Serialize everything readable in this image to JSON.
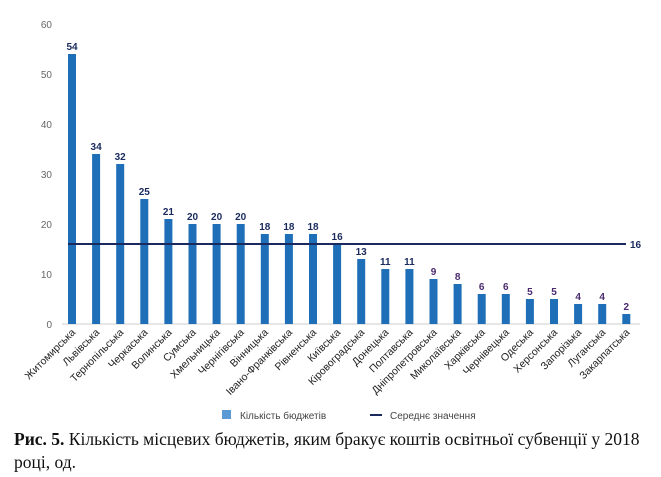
{
  "chart_data": {
    "type": "bar",
    "categories": [
      "Житомирська",
      "Львівська",
      "Тернопільська",
      "Черкаська",
      "Волинська",
      "Сумська",
      "Хмельницька",
      "Чернігівська",
      "Вінницька",
      "Івано-Франківська",
      "Рівненська",
      "Київська",
      "Кіровоградська",
      "Донецька",
      "Полтавська",
      "Дніпропетровська",
      "Миколаївська",
      "Харківська",
      "Чернівецька",
      "Одеська",
      "Херсонська",
      "Запорізька",
      "Луганська",
      "Закарпатська"
    ],
    "series": [
      {
        "name": "Кількість бюджетів",
        "values": [
          54,
          34,
          32,
          25,
          21,
          20,
          20,
          20,
          18,
          18,
          18,
          16,
          13,
          11,
          11,
          9,
          8,
          6,
          6,
          5,
          5,
          4,
          4,
          2
        ],
        "color": "#1f6fb8"
      },
      {
        "name": "Середнє значення",
        "type": "hline",
        "value": 16,
        "label": "16",
        "color": "#1a2a5e"
      }
    ],
    "ylim": [
      0,
      60
    ],
    "yticks": [
      "0",
      "10",
      "20",
      "30",
      "40",
      "50",
      "60"
    ],
    "grid": false,
    "legend": "bottom-center",
    "xlabel": "",
    "ylabel": ""
  },
  "caption": {
    "prefix": "Рис. 5.",
    "text": " Кількість місцевих бюджетів, яким бракує коштів освітньої субвенції у 2018 році, од."
  }
}
